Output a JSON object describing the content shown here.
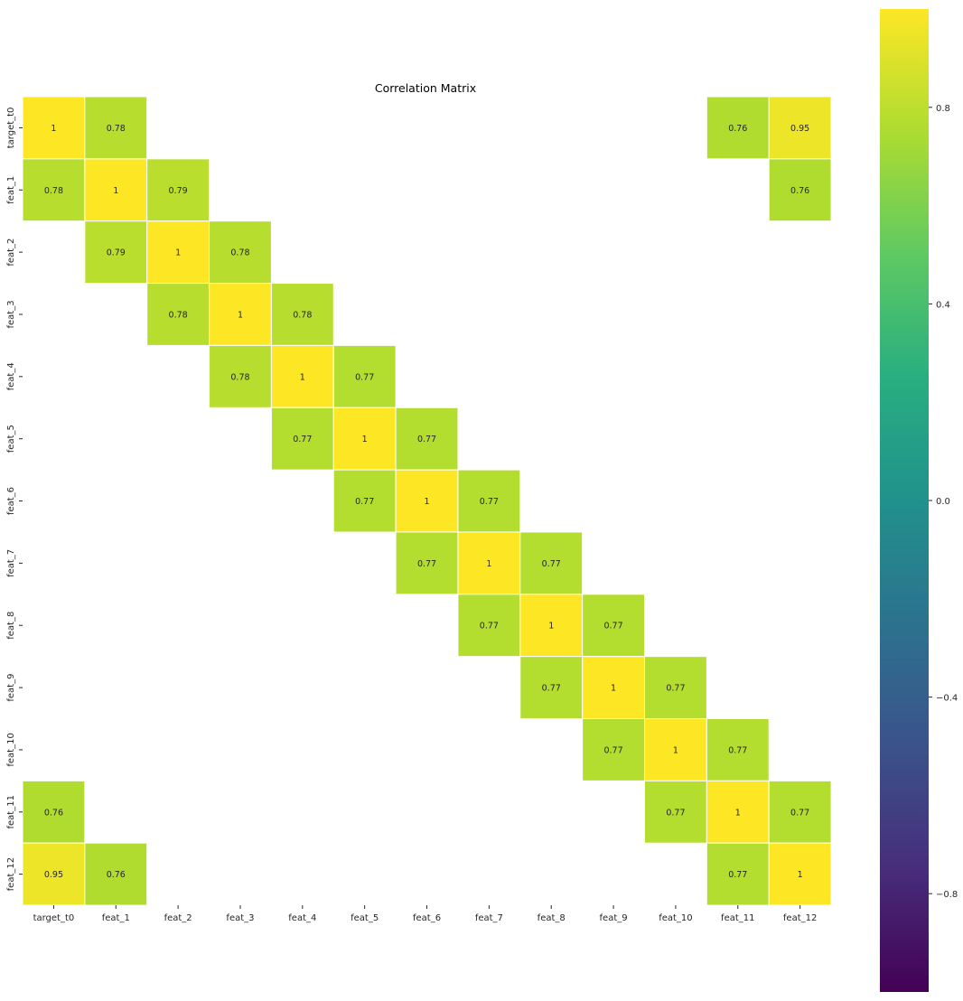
{
  "chart_data": {
    "type": "heatmap",
    "title": "Correlation Matrix",
    "labels": [
      "target_t0",
      "feat_1",
      "feat_2",
      "feat_3",
      "feat_4",
      "feat_5",
      "feat_6",
      "feat_7",
      "feat_8",
      "feat_9",
      "feat_10",
      "feat_11",
      "feat_12"
    ],
    "values": [
      [
        1,
        0.78,
        null,
        null,
        null,
        null,
        null,
        null,
        null,
        null,
        null,
        0.76,
        0.95
      ],
      [
        0.78,
        1,
        0.79,
        null,
        null,
        null,
        null,
        null,
        null,
        null,
        null,
        null,
        0.76
      ],
      [
        null,
        0.79,
        1,
        0.78,
        null,
        null,
        null,
        null,
        null,
        null,
        null,
        null,
        null
      ],
      [
        null,
        null,
        0.78,
        1,
        0.78,
        null,
        null,
        null,
        null,
        null,
        null,
        null,
        null
      ],
      [
        null,
        null,
        null,
        0.78,
        1,
        0.77,
        null,
        null,
        null,
        null,
        null,
        null,
        null
      ],
      [
        null,
        null,
        null,
        null,
        0.77,
        1,
        0.77,
        null,
        null,
        null,
        null,
        null,
        null
      ],
      [
        null,
        null,
        null,
        null,
        null,
        0.77,
        1,
        0.77,
        null,
        null,
        null,
        null,
        null
      ],
      [
        null,
        null,
        null,
        null,
        null,
        null,
        0.77,
        1,
        0.77,
        null,
        null,
        null,
        null
      ],
      [
        null,
        null,
        null,
        null,
        null,
        null,
        null,
        0.77,
        1,
        0.77,
        null,
        null,
        null
      ],
      [
        null,
        null,
        null,
        null,
        null,
        null,
        null,
        null,
        0.77,
        1,
        0.77,
        null,
        null
      ],
      [
        null,
        null,
        null,
        null,
        null,
        null,
        null,
        null,
        null,
        0.77,
        1,
        0.77,
        null
      ],
      [
        0.76,
        null,
        null,
        null,
        null,
        null,
        null,
        null,
        null,
        null,
        0.77,
        1,
        0.77
      ],
      [
        0.95,
        0.76,
        null,
        null,
        null,
        null,
        null,
        null,
        null,
        null,
        null,
        0.77,
        1
      ]
    ],
    "vmin": -1,
    "vmax": 1,
    "colormap": "viridis",
    "colorbar_ticks": [
      0.8,
      0.4,
      0.0,
      -0.4,
      -0.8
    ],
    "colorbar_tick_labels": [
      "0.8",
      "0.4",
      "0.0",
      "−0.4",
      "−0.8"
    ],
    "grid_line_color": "#ffffff"
  }
}
